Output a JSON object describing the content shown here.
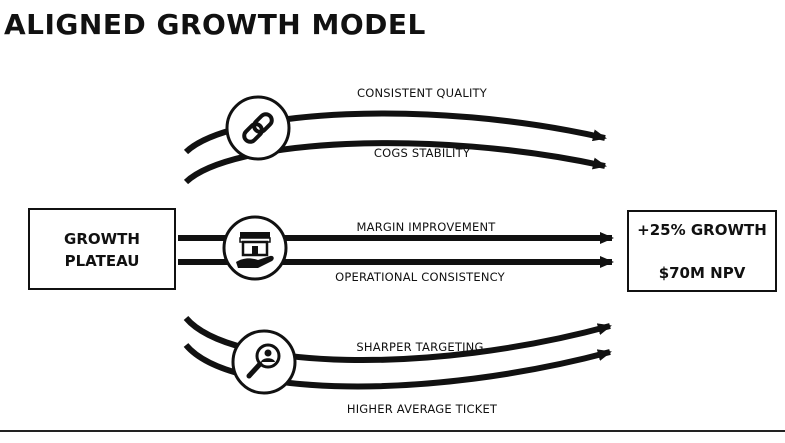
{
  "title": "ALIGNED GROWTH MODEL",
  "start_box": {
    "line1": "GROWTH",
    "line2": "PLATEAU"
  },
  "end_box": {
    "line1": "+25% GROWTH",
    "line2": "$70M NPV"
  },
  "groups": [
    {
      "icon": "chain-link-icon",
      "labels": [
        "CONSISTENT QUALITY",
        "COGS STABILITY"
      ]
    },
    {
      "icon": "storefront-hand-icon",
      "labels": [
        "MARGIN IMPROVEMENT",
        "OPERATIONAL CONSISTENCY"
      ]
    },
    {
      "icon": "magnifier-person-icon",
      "labels": [
        "SHARPER TARGETING",
        "HIGHER AVERAGE TICKET"
      ]
    }
  ],
  "colors": {
    "ink": "#111111",
    "background": "#ffffff"
  }
}
